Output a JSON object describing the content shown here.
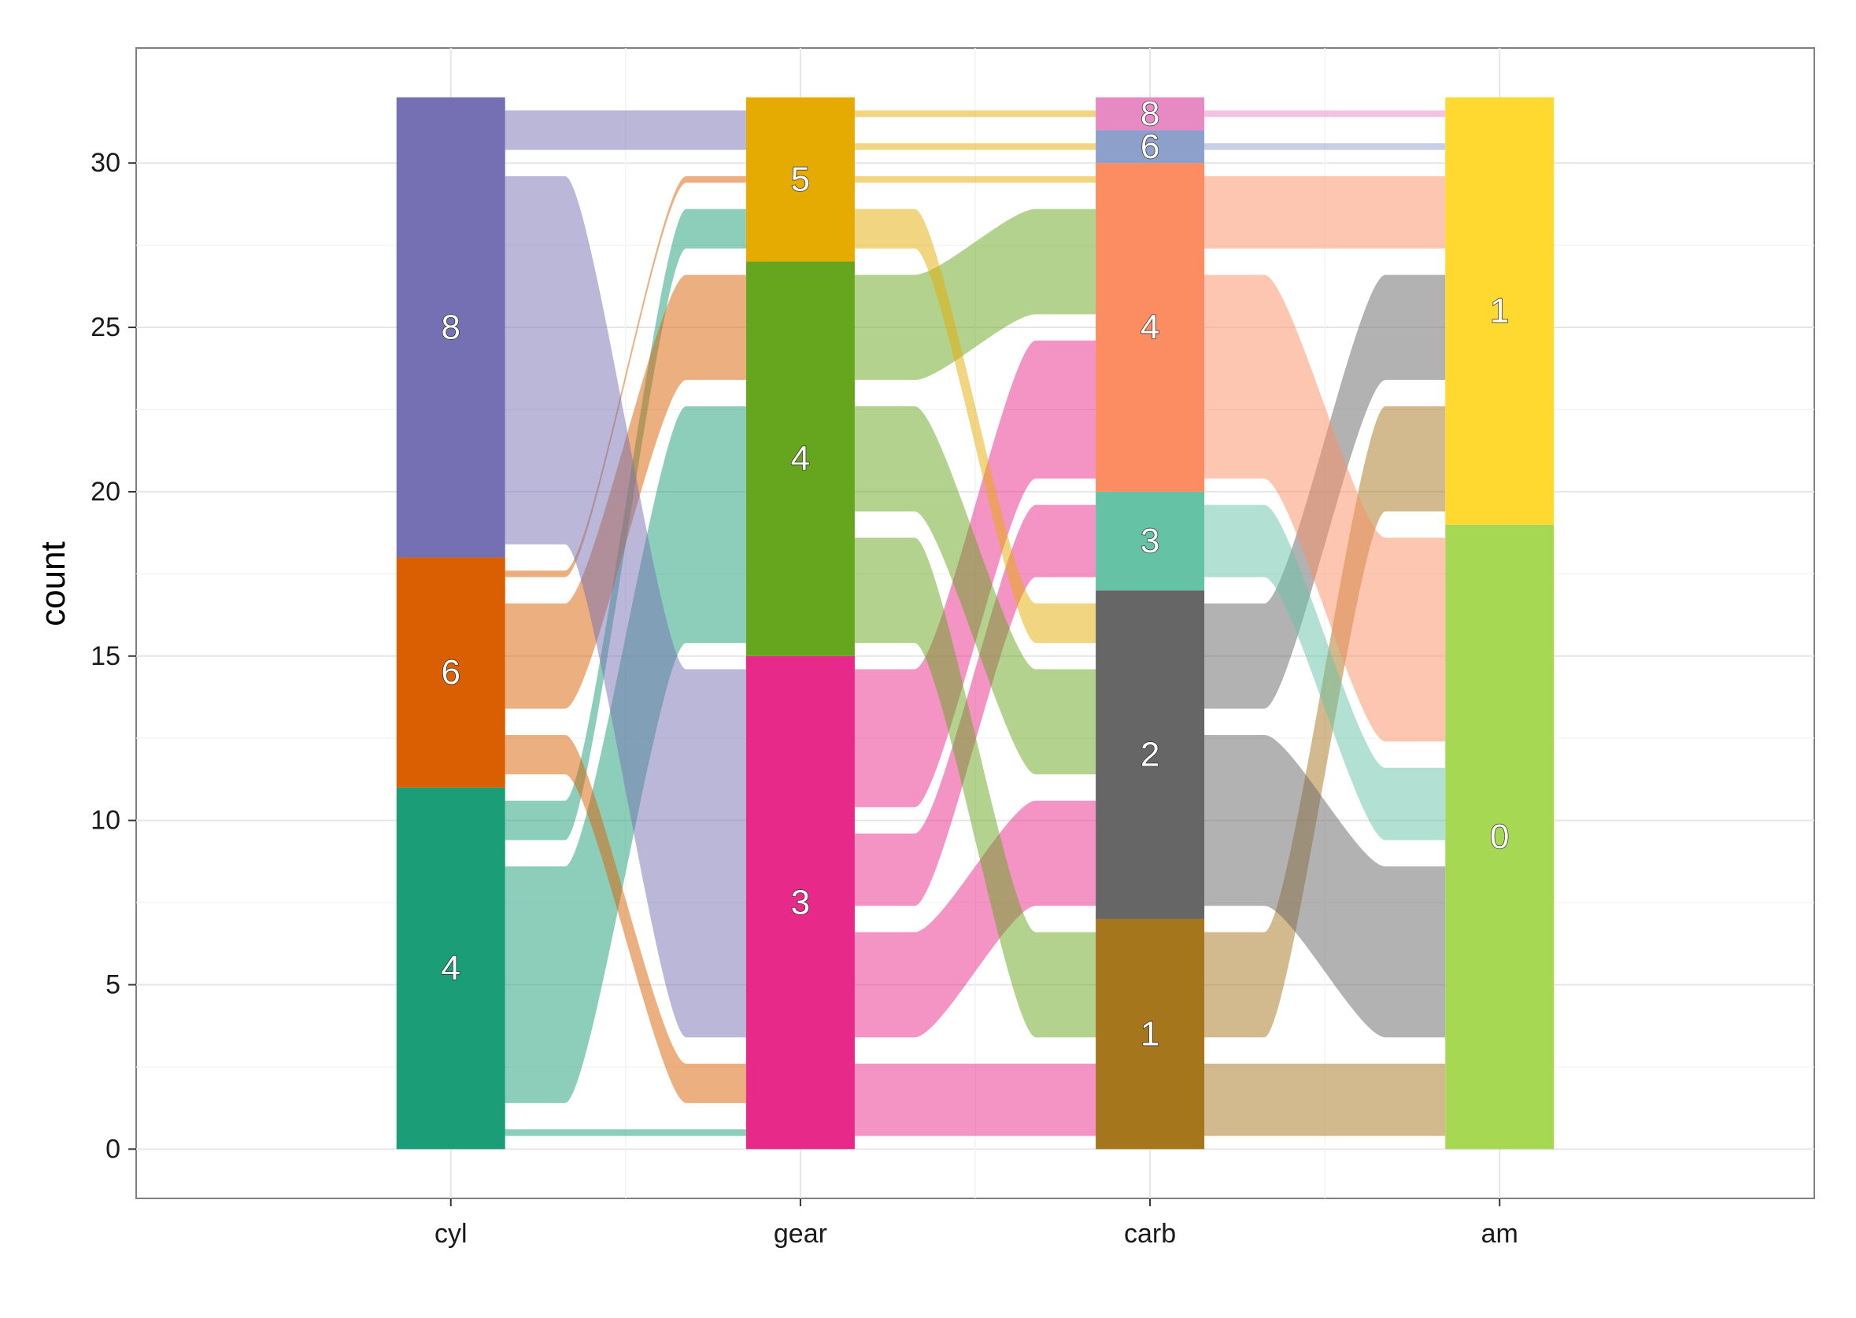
{
  "chart_data": {
    "type": "alluvial",
    "title": "",
    "xlabel": "",
    "ylabel": "count",
    "ylim": [
      -1.5,
      33.5
    ],
    "y_ticks": [
      0,
      5,
      10,
      15,
      20,
      25,
      30
    ],
    "axes": [
      "cyl",
      "gear",
      "carb",
      "am"
    ],
    "grid": true,
    "legend": "none",
    "strata": {
      "cyl": [
        {
          "label": "4",
          "count": 11,
          "color": "#1b9e77"
        },
        {
          "label": "6",
          "count": 7,
          "color": "#d95f02"
        },
        {
          "label": "8",
          "count": 14,
          "color": "#7570b3"
        }
      ],
      "gear": [
        {
          "label": "3",
          "count": 15,
          "color": "#e7298a"
        },
        {
          "label": "4",
          "count": 12,
          "color": "#66a61e"
        },
        {
          "label": "5",
          "count": 5,
          "color": "#e6ab02"
        }
      ],
      "carb": [
        {
          "label": "1",
          "count": 7,
          "color": "#a6761d"
        },
        {
          "label": "2",
          "count": 10,
          "color": "#666666"
        },
        {
          "label": "3",
          "count": 3,
          "color": "#66c2a5"
        },
        {
          "label": "4",
          "count": 10,
          "color": "#fc8d62"
        },
        {
          "label": "6",
          "count": 1,
          "color": "#8da0cb"
        },
        {
          "label": "8",
          "count": 1,
          "color": "#e78ac3"
        }
      ],
      "am": [
        {
          "label": "0",
          "count": 19,
          "color": "#a6d854"
        },
        {
          "label": "1",
          "count": 13,
          "color": "#ffd92f"
        }
      ]
    },
    "flows": [
      {
        "from_axis": "cyl",
        "from": "4",
        "to_axis": "gear",
        "to": "3",
        "count": 1
      },
      {
        "from_axis": "cyl",
        "from": "4",
        "to_axis": "gear",
        "to": "4",
        "count": 8
      },
      {
        "from_axis": "cyl",
        "from": "4",
        "to_axis": "gear",
        "to": "5",
        "count": 2
      },
      {
        "from_axis": "cyl",
        "from": "6",
        "to_axis": "gear",
        "to": "3",
        "count": 2
      },
      {
        "from_axis": "cyl",
        "from": "6",
        "to_axis": "gear",
        "to": "4",
        "count": 4
      },
      {
        "from_axis": "cyl",
        "from": "6",
        "to_axis": "gear",
        "to": "5",
        "count": 1
      },
      {
        "from_axis": "cyl",
        "from": "8",
        "to_axis": "gear",
        "to": "3",
        "count": 12
      },
      {
        "from_axis": "cyl",
        "from": "8",
        "to_axis": "gear",
        "to": "5",
        "count": 2
      },
      {
        "from_axis": "gear",
        "from": "3",
        "to_axis": "carb",
        "to": "1",
        "count": 3
      },
      {
        "from_axis": "gear",
        "from": "3",
        "to_axis": "carb",
        "to": "2",
        "count": 4
      },
      {
        "from_axis": "gear",
        "from": "3",
        "to_axis": "carb",
        "to": "3",
        "count": 3
      },
      {
        "from_axis": "gear",
        "from": "3",
        "to_axis": "carb",
        "to": "4",
        "count": 5
      },
      {
        "from_axis": "gear",
        "from": "4",
        "to_axis": "carb",
        "to": "1",
        "count": 4
      },
      {
        "from_axis": "gear",
        "from": "4",
        "to_axis": "carb",
        "to": "2",
        "count": 4
      },
      {
        "from_axis": "gear",
        "from": "4",
        "to_axis": "carb",
        "to": "4",
        "count": 4
      },
      {
        "from_axis": "gear",
        "from": "5",
        "to_axis": "carb",
        "to": "2",
        "count": 2
      },
      {
        "from_axis": "gear",
        "from": "5",
        "to_axis": "carb",
        "to": "4",
        "count": 1
      },
      {
        "from_axis": "gear",
        "from": "5",
        "to_axis": "carb",
        "to": "6",
        "count": 1
      },
      {
        "from_axis": "gear",
        "from": "5",
        "to_axis": "carb",
        "to": "8",
        "count": 1
      },
      {
        "from_axis": "carb",
        "from": "1",
        "to_axis": "am",
        "to": "0",
        "count": 3
      },
      {
        "from_axis": "carb",
        "from": "1",
        "to_axis": "am",
        "to": "1",
        "count": 4
      },
      {
        "from_axis": "carb",
        "from": "2",
        "to_axis": "am",
        "to": "0",
        "count": 6
      },
      {
        "from_axis": "carb",
        "from": "2",
        "to_axis": "am",
        "to": "1",
        "count": 4
      },
      {
        "from_axis": "carb",
        "from": "3",
        "to_axis": "am",
        "to": "0",
        "count": 3
      },
      {
        "from_axis": "carb",
        "from": "4",
        "to_axis": "am",
        "to": "0",
        "count": 7
      },
      {
        "from_axis": "carb",
        "from": "4",
        "to_axis": "am",
        "to": "1",
        "count": 3
      },
      {
        "from_axis": "carb",
        "from": "6",
        "to_axis": "am",
        "to": "1",
        "count": 1
      },
      {
        "from_axis": "carb",
        "from": "8",
        "to_axis": "am",
        "to": "1",
        "count": 1
      }
    ]
  }
}
